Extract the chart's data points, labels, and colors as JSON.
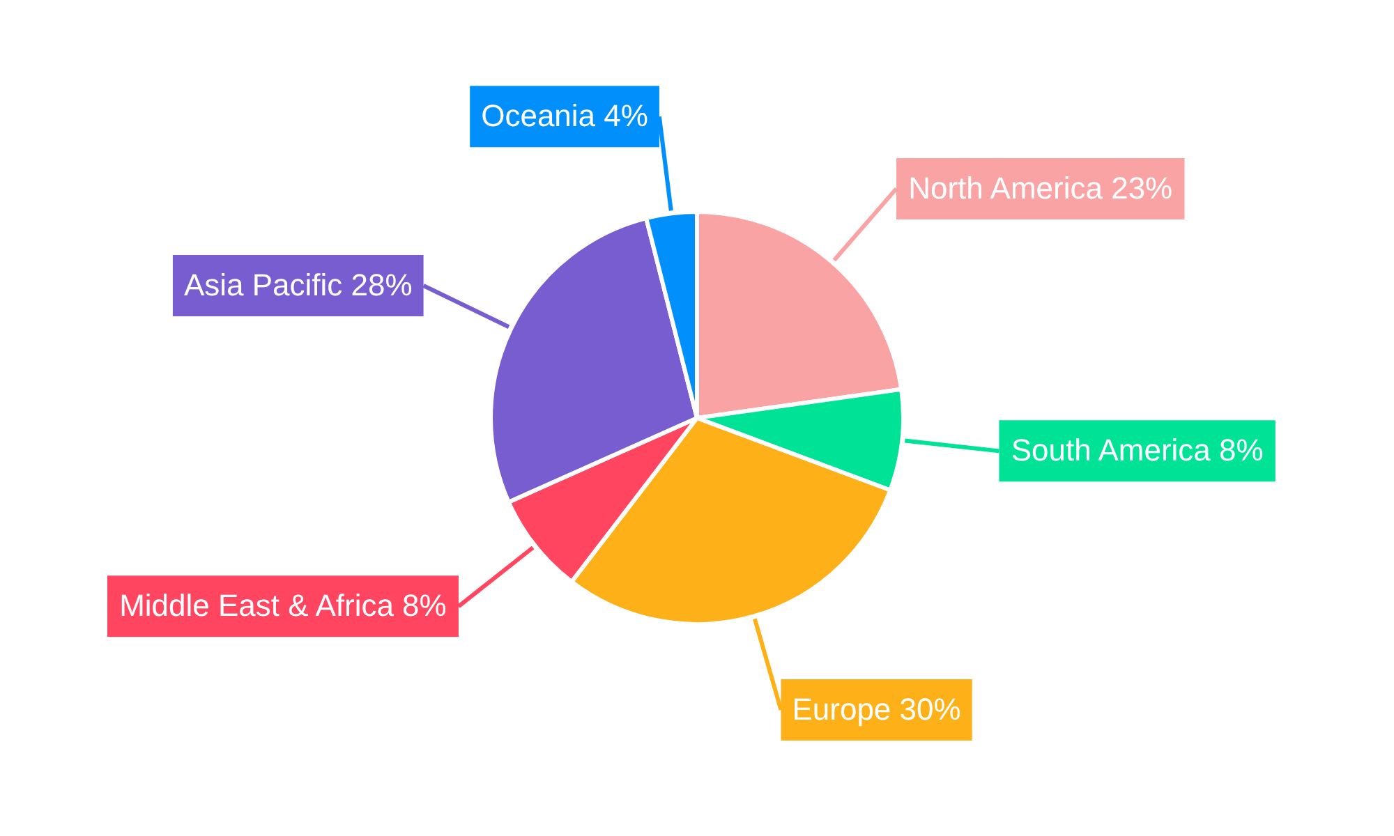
{
  "chart_data": {
    "type": "pie",
    "categories": [
      "North America",
      "South America",
      "Europe",
      "Middle East & Africa",
      "Asia Pacific",
      "Oceania"
    ],
    "values": [
      23,
      8,
      30,
      8,
      28,
      4
    ],
    "value_labels": [
      "23%",
      "8%",
      "30%",
      "8%",
      "28%",
      "4%"
    ],
    "colors": [
      "#f9a3a4",
      "#00e396",
      "#feb019",
      "#ff4560",
      "#775dd0",
      "#008ffb"
    ]
  }
}
